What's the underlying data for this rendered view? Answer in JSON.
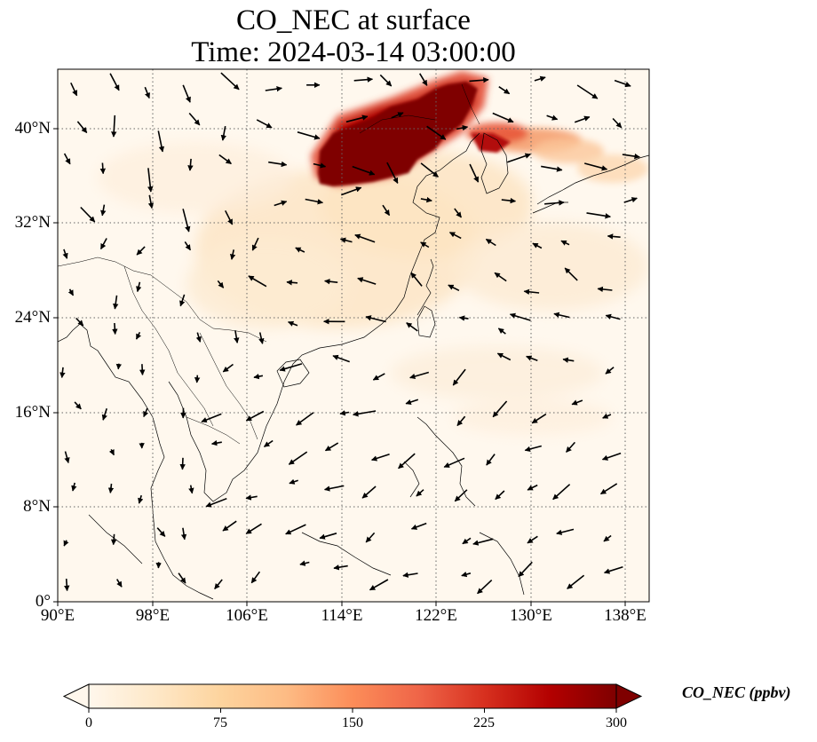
{
  "title": {
    "line1": "CO_NEC at surface",
    "line2": "Time: 2024-03-14 03:00:00"
  },
  "lat_ticks": [
    "0°",
    "8°N",
    "16°N",
    "24°N",
    "32°N",
    "40°N"
  ],
  "lon_ticks": [
    "90°E",
    "98°E",
    "106°E",
    "114°E",
    "122°E",
    "130°E",
    "138°E"
  ],
  "colorbar": {
    "label": "CO_NEC (ppbv)",
    "ticks": [
      "0",
      "75",
      "150",
      "225",
      "300"
    ],
    "colormap": "OrRd",
    "extend": "both",
    "stops": [
      "#fff7ec",
      "#fee8c8",
      "#fdd49e",
      "#fdbb84",
      "#fc8d59",
      "#ef6548",
      "#d7301f",
      "#b30000",
      "#7f0000"
    ]
  },
  "map_data": {
    "type": "map",
    "variable": "CO_NEC",
    "units": "ppbv",
    "extent": {
      "lon_min": 90,
      "lon_max": 140,
      "lat_min": 0,
      "lat_max": 45
    },
    "gridlines": "dotted",
    "wind_vectors": true,
    "high_concentration_region": "North China Plain / Northeast China, ~35-45°N, 111-126°E (values ≥300 ppbv)",
    "secondary_plume": "Korea to Japan, ~37-40°N, 125-137°E"
  }
}
